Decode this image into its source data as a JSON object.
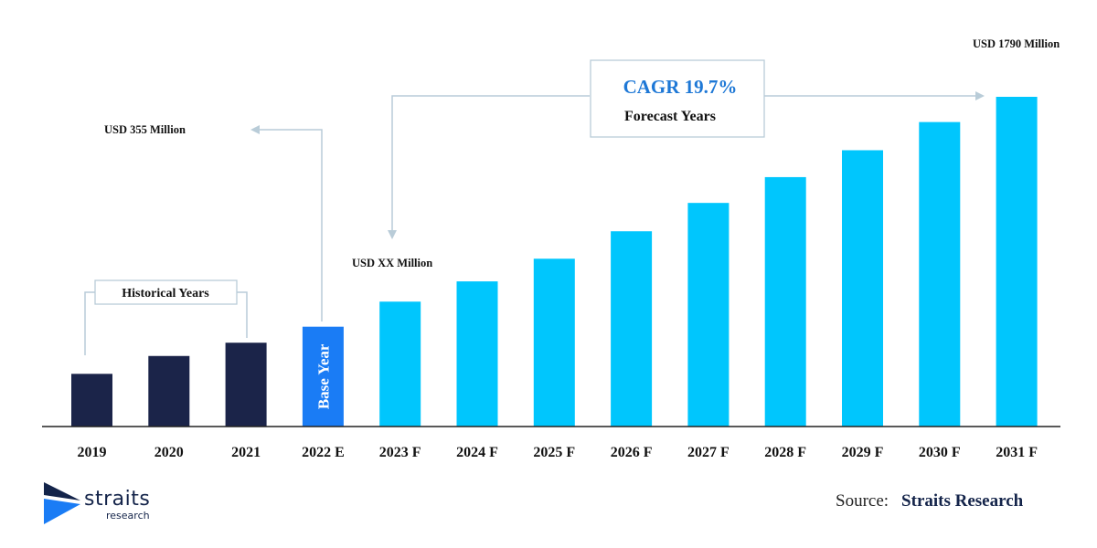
{
  "chart_data": {
    "type": "bar",
    "categories": [
      "2019",
      "2020",
      "2021",
      "2022 E",
      "2023 F",
      "2024 F",
      "2025 F",
      "2026 F",
      "2027 F",
      "2028 F",
      "2029 F",
      "2030 F",
      "2031 F"
    ],
    "values": [
      286,
      383,
      455,
      542,
      678,
      788,
      911,
      1060,
      1214,
      1354,
      1500,
      1653,
      1790
    ],
    "bar_groups": [
      "historical",
      "historical",
      "historical",
      "base",
      "forecast",
      "forecast",
      "forecast",
      "forecast",
      "forecast",
      "forecast",
      "forecast",
      "forecast",
      "forecast"
    ],
    "ylim": [
      0,
      1790
    ],
    "grid": false,
    "annotations": {
      "start_value": "USD 355 Million",
      "forecast_start": "USD XX Million",
      "end_value": "USD 1790 Million",
      "cagr": "CAGR 19.7%",
      "forecast_label": "Forecast Years",
      "historical_label": "Historical Years",
      "base_year_label": "Base Year"
    }
  },
  "colors": {
    "historical": "#1b2449",
    "base": "#1a7cf5",
    "forecast": "#00c6fd",
    "connector": "#b9ccd8",
    "cagr_text": "#1e78d6"
  },
  "source": {
    "label": "Source:",
    "brand": "Straits Research"
  },
  "logo": {
    "name": "straits",
    "sub": "research"
  }
}
